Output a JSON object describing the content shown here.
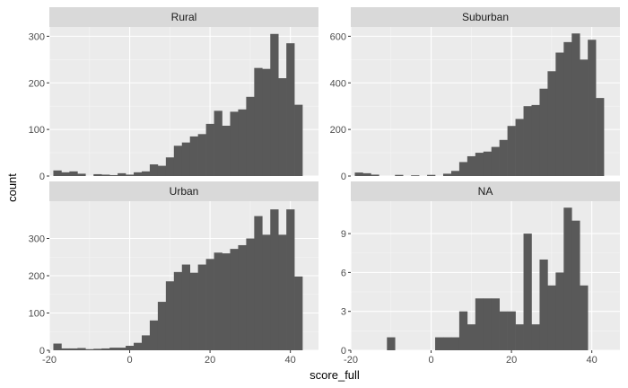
{
  "chart_data": {
    "type": "histogram",
    "layout": "facet-wrap 2x2",
    "xlabel": "score_full",
    "ylabel": "count",
    "xlim": [
      -20,
      47
    ],
    "x_ticks": [
      -20,
      0,
      20,
      40
    ],
    "bin_width": 2,
    "bin_start": -18,
    "bar_color": "#595959",
    "panel_bg": "#ebebeb",
    "strip_bg": "#d9d9d9",
    "panels": [
      {
        "name": "Rural",
        "ylim": [
          0,
          320
        ],
        "y_ticks": [
          0,
          100,
          200,
          300
        ],
        "counts": [
          12,
          8,
          10,
          5,
          0,
          4,
          3,
          2,
          6,
          3,
          8,
          10,
          25,
          22,
          40,
          65,
          72,
          85,
          90,
          112,
          140,
          108,
          138,
          143,
          170,
          232,
          230,
          305,
          210,
          285,
          153
        ]
      },
      {
        "name": "Suburban",
        "ylim": [
          0,
          640
        ],
        "y_ticks": [
          0,
          200,
          400,
          600
        ],
        "counts": [
          15,
          12,
          6,
          0,
          0,
          5,
          0,
          3,
          0,
          5,
          0,
          10,
          22,
          60,
          85,
          100,
          105,
          125,
          155,
          215,
          245,
          300,
          305,
          375,
          450,
          530,
          575,
          612,
          500,
          585,
          335
        ]
      },
      {
        "name": "Urban",
        "ylim": [
          0,
          400
        ],
        "y_ticks": [
          0,
          100,
          200,
          300
        ],
        "counts": [
          18,
          5,
          5,
          6,
          3,
          4,
          5,
          7,
          7,
          12,
          20,
          40,
          80,
          130,
          185,
          210,
          230,
          208,
          230,
          245,
          262,
          260,
          272,
          282,
          300,
          360,
          310,
          378,
          310,
          378,
          198
        ]
      },
      {
        "name": "NA",
        "ylim": [
          0,
          11.5
        ],
        "y_ticks": [
          0,
          3,
          6,
          9
        ],
        "counts": [
          0,
          0,
          0,
          0,
          1,
          0,
          0,
          0,
          0,
          0,
          1,
          1,
          1,
          3,
          2,
          4,
          4,
          4,
          3,
          3,
          2,
          9,
          2,
          7,
          5,
          6,
          11,
          10,
          5,
          0,
          0
        ]
      }
    ]
  }
}
